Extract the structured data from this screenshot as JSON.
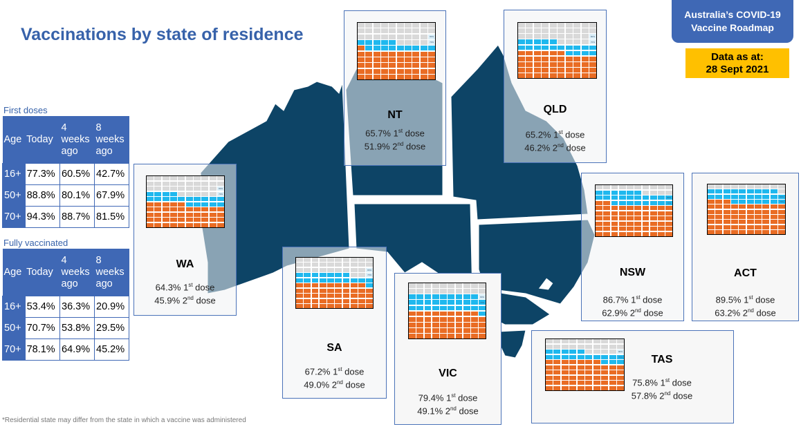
{
  "title": "Vaccinations by state of residence",
  "roadmap_badge": {
    "line1": "Australia’s COVID-19",
    "line2": "Vaccine Roadmap"
  },
  "data_as_at": {
    "line1": "Data as at:",
    "line2": "28 Sept 2021"
  },
  "footnote": "*Residential state may differ from the state in which a vaccine was administered",
  "colors": {
    "second_dose": "#e96c24",
    "first_dose": "#1fb8ee",
    "unvaccinated": "#d9d9d9",
    "map": "#0d4466",
    "table_header": "#3f68b5",
    "title": "#3762aa",
    "badge": "#ffc000"
  },
  "first_doses_table": {
    "label": "First doses",
    "headers": [
      "Age",
      "Today",
      "4 weeks ago",
      "8 weeks ago"
    ],
    "rows": [
      [
        "16+",
        "77.3%",
        "60.5%",
        "42.7%"
      ],
      [
        "50+",
        "88.8%",
        "80.1%",
        "67.9%"
      ],
      [
        "70+",
        "94.3%",
        "88.7%",
        "81.5%"
      ]
    ]
  },
  "fully_vaccinated_table": {
    "label": "Fully vaccinated",
    "headers": [
      "Age",
      "Today",
      "4 weeks ago",
      "8 weeks ago"
    ],
    "rows": [
      [
        "16+",
        "53.4%",
        "36.3%",
        "20.9%"
      ],
      [
        "50+",
        "70.7%",
        "53.8%",
        "29.5%"
      ],
      [
        "70+",
        "78.1%",
        "64.9%",
        "45.2%"
      ]
    ]
  },
  "chart_data": {
    "type": "waffle",
    "title": "Vaccinations by state of residence",
    "grid": "10x10 (each cell = 1%)",
    "marker_labels": [
      "80%",
      "70%"
    ],
    "series": [
      {
        "name": "1st dose",
        "color": "#1fb8ee"
      },
      {
        "name": "2nd dose",
        "color": "#e96c24"
      }
    ],
    "states": [
      {
        "state": "NT",
        "first_dose_pct": 65.7,
        "second_dose_pct": 51.9,
        "first_label": "65.7%",
        "second_label": "51.9%"
      },
      {
        "state": "QLD",
        "first_dose_pct": 65.2,
        "second_dose_pct": 46.2,
        "first_label": "65.2%",
        "second_label": "46.2%"
      },
      {
        "state": "WA",
        "first_dose_pct": 64.3,
        "second_dose_pct": 45.9,
        "first_label": "64.3%",
        "second_label": "45.9%"
      },
      {
        "state": "SA",
        "first_dose_pct": 67.2,
        "second_dose_pct": 49.0,
        "first_label": "67.2%",
        "second_label": "49.0%"
      },
      {
        "state": "VIC",
        "first_dose_pct": 79.4,
        "second_dose_pct": 49.1,
        "first_label": "79.4%",
        "second_label": "49.1%"
      },
      {
        "state": "NSW",
        "first_dose_pct": 86.7,
        "second_dose_pct": 62.9,
        "first_label": "86.7%",
        "second_label": "62.9%"
      },
      {
        "state": "ACT",
        "first_dose_pct": 89.5,
        "second_dose_pct": 63.2,
        "first_label": "89.5%",
        "second_label": "63.2%"
      },
      {
        "state": "TAS",
        "first_dose_pct": 75.8,
        "second_dose_pct": 57.8,
        "first_label": "75.8%",
        "second_label": "57.8%"
      }
    ],
    "dose_suffix": {
      "first": "1st dose",
      "second": "2nd dose"
    }
  }
}
